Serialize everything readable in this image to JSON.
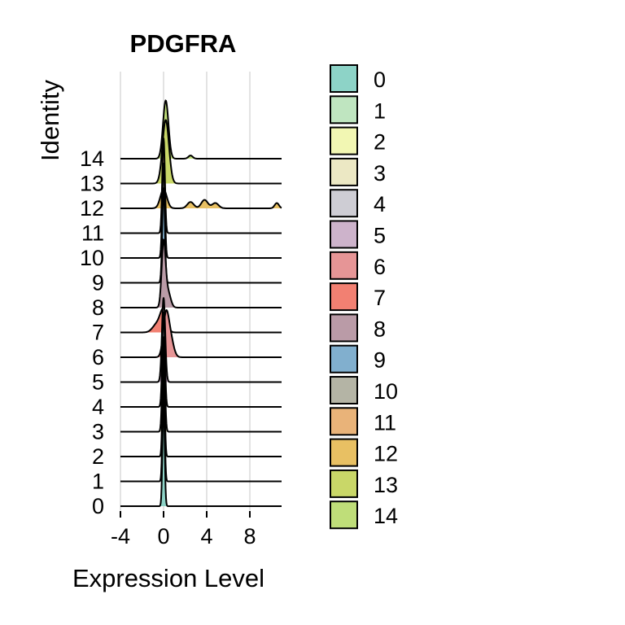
{
  "chart_data": {
    "type": "ridgeline",
    "title": "PDGFRA",
    "xlabel": "Expression Level",
    "ylabel": "Identity",
    "xlim": [
      -4,
      11
    ],
    "x_ticks": [
      -4,
      0,
      4,
      8
    ],
    "x_tick_labels": [
      "-4",
      "0",
      "4",
      "8"
    ],
    "grid": true,
    "legend_position": "right",
    "categories": [
      "0",
      "1",
      "2",
      "3",
      "4",
      "5",
      "6",
      "7",
      "8",
      "9",
      "10",
      "11",
      "12",
      "13",
      "14"
    ],
    "colors": [
      "#8DD3C7",
      "#BFE5C0",
      "#F2F7B3",
      "#ECE8C4",
      "#CECDD4",
      "#CDB3CB",
      "#E69596",
      "#F28072",
      "#BA9BA7",
      "#81AFCE",
      "#B4B4A5",
      "#E9B379",
      "#E8C063",
      "#C9D768",
      "#BFDE79"
    ],
    "series": [
      {
        "name": "0",
        "peak": 0,
        "spread": 0.1,
        "height": 1.0,
        "minor": []
      },
      {
        "name": "1",
        "peak": 0,
        "spread": 0.1,
        "height": 1.0,
        "minor": []
      },
      {
        "name": "2",
        "peak": 0,
        "spread": 0.1,
        "height": 1.0,
        "minor": []
      },
      {
        "name": "3",
        "peak": 0,
        "spread": 0.12,
        "height": 0.9,
        "minor": []
      },
      {
        "name": "4",
        "peak": 0,
        "spread": 0.12,
        "height": 0.9,
        "minor": []
      },
      {
        "name": "5",
        "peak": 0,
        "spread": 0.15,
        "height": 0.8,
        "minor": []
      },
      {
        "name": "6",
        "peak": 0.2,
        "spread": 0.25,
        "height": 0.35,
        "minor": [
          [
            0.6,
            0.3,
            0.2
          ]
        ]
      },
      {
        "name": "7",
        "peak": 0,
        "spread": 0.3,
        "height": 0.2,
        "minor": [
          [
            -0.6,
            0.4,
            0.08
          ]
        ]
      },
      {
        "name": "8",
        "peak": 0,
        "spread": 0.18,
        "height": 0.6,
        "minor": [
          [
            0.4,
            0.25,
            0.15
          ]
        ]
      },
      {
        "name": "9",
        "peak": 0,
        "spread": 0.12,
        "height": 0.9,
        "minor": []
      },
      {
        "name": "10",
        "peak": 0,
        "spread": 0.12,
        "height": 0.9,
        "minor": []
      },
      {
        "name": "11",
        "peak": 0,
        "spread": 0.12,
        "height": 0.9,
        "minor": []
      },
      {
        "name": "12",
        "peak": 0,
        "spread": 0.3,
        "height": 0.18,
        "minor": [
          [
            2.5,
            0.3,
            0.06
          ],
          [
            3.8,
            0.3,
            0.08
          ],
          [
            4.8,
            0.3,
            0.05
          ],
          [
            10.5,
            0.2,
            0.05
          ]
        ]
      },
      {
        "name": "13",
        "peak": 0.2,
        "spread": 0.3,
        "height": 0.6,
        "minor": []
      },
      {
        "name": "14",
        "peak": 0.2,
        "spread": 0.25,
        "height": 0.55,
        "minor": [
          [
            2.5,
            0.2,
            0.03
          ]
        ]
      }
    ]
  }
}
